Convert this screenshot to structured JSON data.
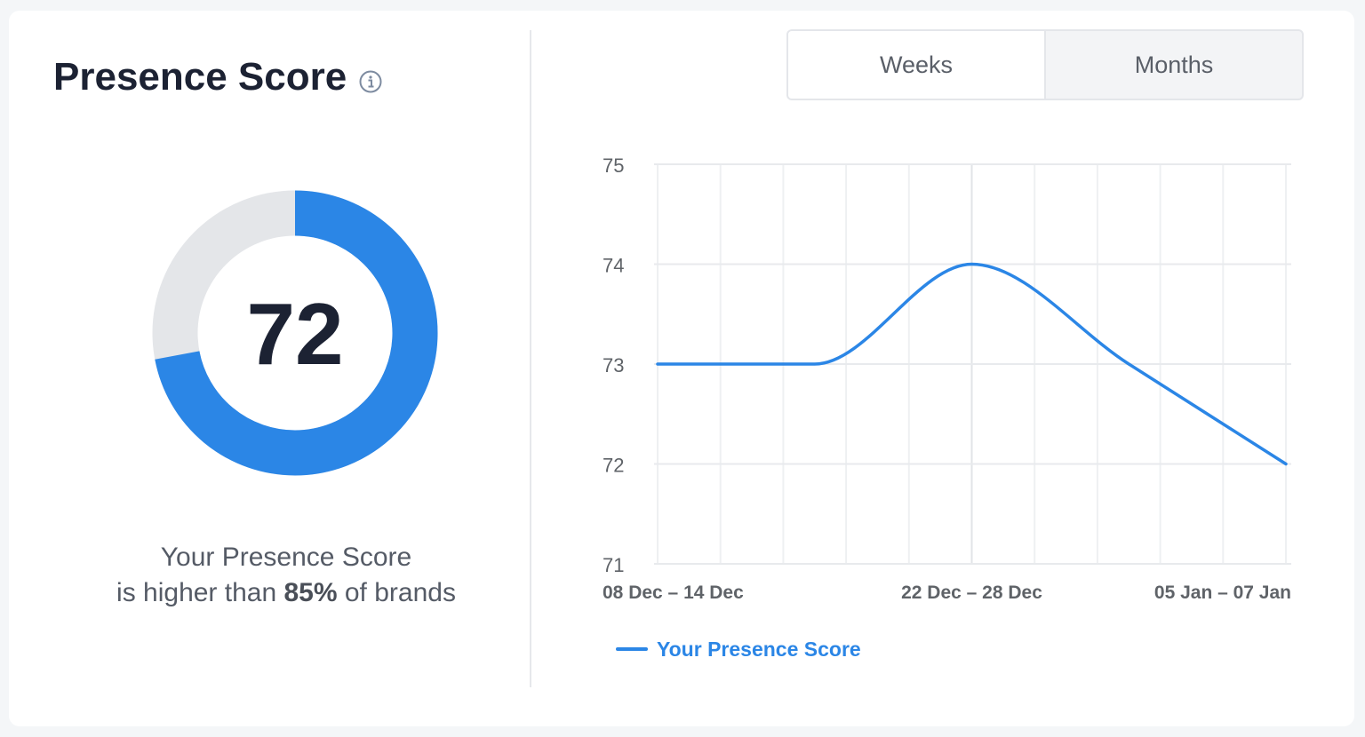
{
  "header": {
    "title": "Presence Score",
    "info_icon": "info-circle-icon"
  },
  "score": {
    "value": "72",
    "percent": 72,
    "caption_line1": "Your Presence Score",
    "caption_prefix": "is higher than ",
    "caption_bold": "85%",
    "caption_suffix": " of brands"
  },
  "colors": {
    "accent": "#2b86e6",
    "track": "#e4e6e9",
    "title": "#1c2233"
  },
  "toggle": {
    "tabs": [
      {
        "label": "Weeks",
        "active": true
      },
      {
        "label": "Months",
        "active": false
      }
    ]
  },
  "chart_data": {
    "type": "line",
    "x": [
      0,
      1,
      2,
      3,
      4
    ],
    "tick_labels": [
      {
        "x": 0,
        "label": "08 Dec – 14 Dec"
      },
      {
        "x": 2,
        "label": "22 Dec – 28 Dec"
      },
      {
        "x": 4,
        "label": "05 Jan – 07 Jan"
      }
    ],
    "series": [
      {
        "name": "Your Presence Score",
        "values": [
          73,
          73,
          74,
          73,
          72
        ],
        "color": "#2b86e6"
      }
    ],
    "ylim": [
      71,
      75
    ],
    "yticks": [
      "75",
      "74",
      "73",
      "72",
      "71"
    ],
    "grid": true,
    "smooth": true,
    "legend": "bottom-left"
  }
}
